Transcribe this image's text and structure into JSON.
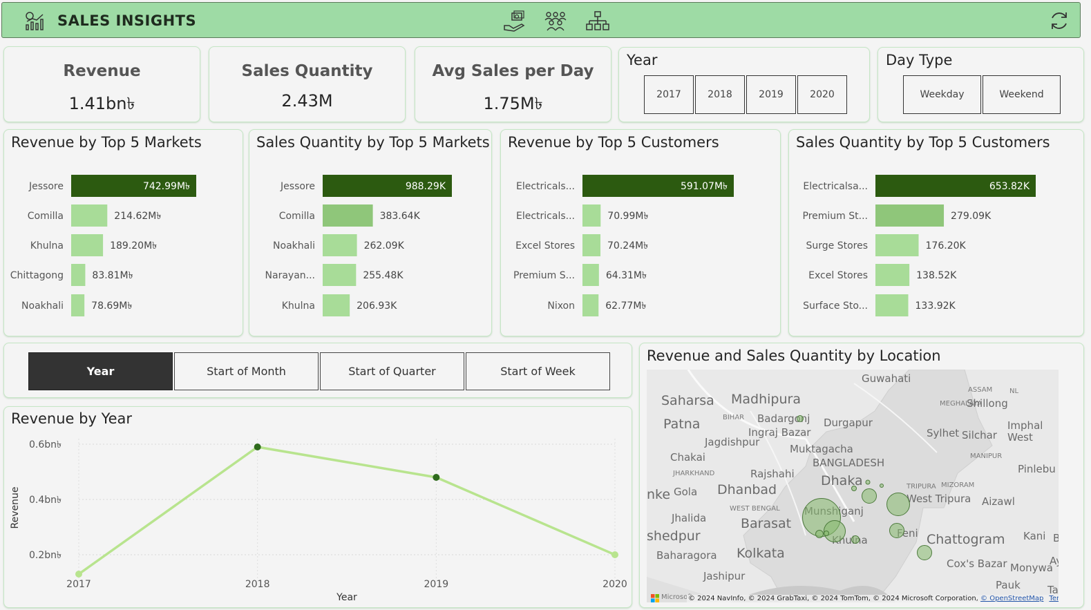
{
  "header": {
    "title": "SALES INSIGHTS",
    "nav_icons": [
      "money-hand-icon",
      "team-icon",
      "hierarchy-icon"
    ],
    "refresh_icon": "refresh-icon"
  },
  "kpis": [
    {
      "label": "Revenue",
      "value": "1.41bn৳"
    },
    {
      "label": "Sales Quantity",
      "value": "2.43M"
    },
    {
      "label": "Avg Sales per Day",
      "value": "1.75M৳"
    }
  ],
  "year_slicer": {
    "title": "Year",
    "options": [
      "2017",
      "2018",
      "2019",
      "2020"
    ]
  },
  "daytype_slicer": {
    "title": "Day Type",
    "options": [
      "Weekday",
      "Weekend"
    ]
  },
  "colors": {
    "accent_dark": "#2c5a10",
    "bar_mid": "#8fc67a",
    "bar_light": "#a8dc98",
    "line": "#b8e48e",
    "header_bg": "#9edba5"
  },
  "bar_panels": [
    {
      "title": "Revenue by Top 5 Markets",
      "chart_data": {
        "type": "bar",
        "orientation": "horizontal",
        "categories": [
          "Jessore",
          "Comilla",
          "Khulna",
          "Chittagong",
          "Noakhali"
        ],
        "values": [
          742.99,
          214.62,
          189.2,
          83.81,
          78.69
        ],
        "value_labels": [
          "742.99M৳",
          "214.62M৳",
          "189.20M৳",
          "83.81M৳",
          "78.69M৳"
        ]
      }
    },
    {
      "title": "Sales Quantity by Top 5 Markets",
      "chart_data": {
        "type": "bar",
        "orientation": "horizontal",
        "categories": [
          "Jessore",
          "Comilla",
          "Noakhali",
          "Narayan...",
          "Khulna"
        ],
        "values": [
          988.29,
          383.64,
          262.09,
          255.48,
          206.93
        ],
        "value_labels": [
          "988.29K",
          "383.64K",
          "262.09K",
          "255.48K",
          "206.93K"
        ]
      }
    },
    {
      "title": "Revenue by Top 5 Customers",
      "chart_data": {
        "type": "bar",
        "orientation": "horizontal",
        "categories": [
          "Electricals...",
          "Electricals...",
          "Excel Stores",
          "Premium S...",
          "Nixon"
        ],
        "values": [
          591.07,
          70.99,
          70.24,
          64.31,
          62.77
        ],
        "value_labels": [
          "591.07M৳",
          "70.99M৳",
          "70.24M৳",
          "64.31M৳",
          "62.77M৳"
        ]
      }
    },
    {
      "title": "Sales Quantity by Top 5 Customers",
      "chart_data": {
        "type": "bar",
        "orientation": "horizontal",
        "categories": [
          "Electricalsa...",
          "Premium St...",
          "Surge Stores",
          "Excel Stores",
          "Surface Sto..."
        ],
        "values": [
          653.82,
          279.09,
          176.2,
          138.52,
          133.92
        ],
        "value_labels": [
          "653.82K",
          "279.09K",
          "176.20K",
          "138.52K",
          "133.92K"
        ]
      }
    }
  ],
  "date_tabs": {
    "active": 0,
    "labels": [
      "Year",
      "Start of Month",
      "Start of Quarter",
      "Start of Week"
    ]
  },
  "line_panel": {
    "title": "Revenue by Year",
    "chart_data": {
      "type": "line",
      "x": [
        "2017",
        "2018",
        "2019",
        "2020"
      ],
      "values": [
        0.13,
        0.59,
        0.48,
        0.2
      ],
      "xlabel": "Year",
      "ylabel": "Revenue",
      "yticks": [
        0.2,
        0.4,
        0.6
      ],
      "ytick_labels": [
        "0.2bn৳",
        "0.4bn৳",
        "0.6bn৳"
      ],
      "ylim": [
        0.1,
        0.62
      ],
      "grid": true
    }
  },
  "map_panel": {
    "title": "Revenue and Sales Quantity by Location",
    "labels": [
      "Guwahati",
      "Saharsa",
      "Madhipura",
      "ASSAM",
      "NL",
      "MEGHALAYA",
      "Shillong",
      "Patna",
      "BIHAR",
      "Badargonj",
      "Durgapur",
      "Imphal",
      "Jagdishpur",
      "Ingraj Bazar",
      "Sylhet",
      "Silchar",
      "West",
      "Chakai",
      "Muktagacha",
      "MANIPUR",
      "BANGLADESH",
      "JHARKHAND",
      "Rajshahi",
      "Pinlebu",
      "nke",
      "Gola",
      "Dhanbad",
      "Dhaka",
      "TRIPURA",
      "MIZORAM",
      "Jhalida",
      "WEST BENGAL",
      "Munshiganj",
      "West Tripura",
      "Aizawl",
      "Barasat",
      "shedpur",
      "Khulna",
      "Feni",
      "Chattogram",
      "Kani",
      "Buda",
      "Baharagora",
      "Kolkata",
      "Cox's Bazar",
      "Monywa",
      "Jashipur",
      "Pauk",
      "Ta",
      "Ay"
    ],
    "ms_label": "Microsoft",
    "copyright": "© 2024 NavInfo, © 2024 GrabTaxi, © 2024 TomTom, © 2024 Microsoft Corporation,",
    "osm_link": "© OpenStreetMap",
    "terms_link": "Terms"
  }
}
